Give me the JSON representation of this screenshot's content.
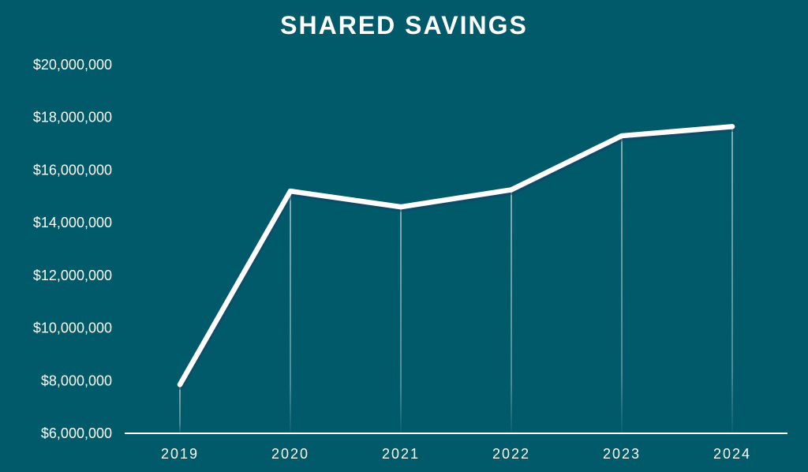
{
  "colors": {
    "background": "#005a6a",
    "line": "#ffffff",
    "text": "#ffffff"
  },
  "chart_data": {
    "type": "line",
    "title": "SHARED SAVINGS",
    "xlabel": "",
    "ylabel": "",
    "categories": [
      "2019",
      "2020",
      "2021",
      "2022",
      "2023",
      "2024"
    ],
    "values": [
      7850000,
      15200000,
      14600000,
      15250000,
      17300000,
      17650000
    ],
    "ylim": [
      6000000,
      20000000
    ],
    "yticks": [
      20000000,
      18000000,
      16000000,
      14000000,
      12000000,
      10000000,
      8000000,
      6000000
    ],
    "ytick_labels": [
      "$20,000,000",
      "$18,000,000",
      "$16,000,000",
      "$14,000,000",
      "$12,000,000",
      "$10,000,000",
      "$8,000,000",
      "$6,000,000"
    ],
    "grid": false,
    "drop_lines": true,
    "legend": "none"
  }
}
